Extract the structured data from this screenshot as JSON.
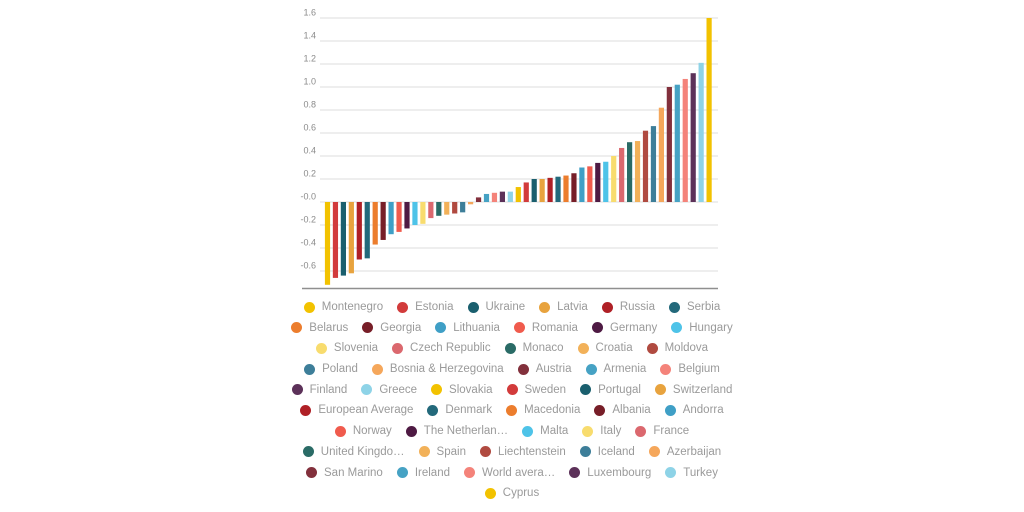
{
  "chart_data": {
    "type": "bar",
    "title": "",
    "xlabel": "",
    "ylabel": "",
    "grid": true,
    "legend_position": "bottom",
    "ylim": [
      -0.76,
      1.62
    ],
    "ytick_labels": [
      "1.6",
      "1.4",
      "1.2",
      "1.0",
      "0.8",
      "0.6",
      "0.4",
      "0.2",
      "-0.0",
      "-0.2",
      "-0.4",
      "-0.6"
    ],
    "categories": [
      "Montenegro",
      "Estonia",
      "Ukraine",
      "Latvia",
      "Russia",
      "Serbia",
      "Belarus",
      "Georgia",
      "Lithuania",
      "Romania",
      "Germany",
      "Hungary",
      "Slovenia",
      "Czech Republic",
      "Monaco",
      "Croatia",
      "Moldova",
      "Poland",
      "Bosnia & Herzegovina",
      "Austria",
      "Armenia",
      "Belgium",
      "Finland",
      "Greece",
      "Slovakia",
      "Sweden",
      "Portugal",
      "Switzerland",
      "European Average",
      "Denmark",
      "Macedonia",
      "Albania",
      "Andorra",
      "Norway",
      "The Netherlan…",
      "Malta",
      "Italy",
      "France",
      "United Kingdo…",
      "Spain",
      "Liechtenstein",
      "Iceland",
      "Azerbaijan",
      "San Marino",
      "Ireland",
      "World avera…",
      "Luxembourg",
      "Turkey",
      "Cyprus"
    ],
    "values": [
      -0.72,
      -0.66,
      -0.64,
      -0.62,
      -0.5,
      -0.49,
      -0.37,
      -0.33,
      -0.28,
      -0.26,
      -0.23,
      -0.2,
      -0.19,
      -0.14,
      -0.12,
      -0.11,
      -0.1,
      -0.09,
      -0.02,
      0.04,
      0.07,
      0.08,
      0.09,
      0.09,
      0.13,
      0.17,
      0.2,
      0.2,
      0.21,
      0.22,
      0.23,
      0.25,
      0.3,
      0.31,
      0.34,
      0.35,
      0.4,
      0.47,
      0.52,
      0.53,
      0.62,
      0.66,
      0.82,
      1.0,
      1.02,
      1.07,
      1.12,
      1.21,
      1.6
    ],
    "palette": [
      "#F2C200",
      "#D23B3B",
      "#1A5F6E",
      "#E8A33E",
      "#AF2026",
      "#23697B",
      "#EC7D2D",
      "#771E28",
      "#3F9FC6",
      "#F05B4D",
      "#4E1A43",
      "#4EC3E8",
      "#F8DC6E",
      "#DB686E",
      "#2A6B66",
      "#F2B159",
      "#B04A40",
      "#3D7E99",
      "#F5A75B",
      "#82303C",
      "#46A2C4",
      "#F4837A",
      "#5C3159",
      "#8ED3E7"
    ],
    "grid_color": "#DCDCDC",
    "axis_color": "#8F8F8F",
    "tick_label_color": "#8A8A8A",
    "legend_text_color": "#9A9A9A",
    "background_color": "#FFFFFF"
  },
  "legend": {
    "rows": [
      [
        0,
        1,
        2,
        3,
        4,
        5
      ],
      [
        6,
        7,
        8,
        9,
        10,
        11
      ],
      [
        12,
        13,
        14,
        15,
        16
      ],
      [
        17,
        18,
        19,
        20,
        21
      ],
      [
        22,
        23,
        24,
        25,
        26,
        27
      ],
      [
        28,
        29,
        30,
        31,
        32
      ],
      [
        33,
        34,
        35,
        36,
        37
      ],
      [
        38,
        39,
        40,
        41,
        42
      ],
      [
        43,
        44,
        45,
        46,
        47
      ],
      [
        48
      ]
    ]
  }
}
